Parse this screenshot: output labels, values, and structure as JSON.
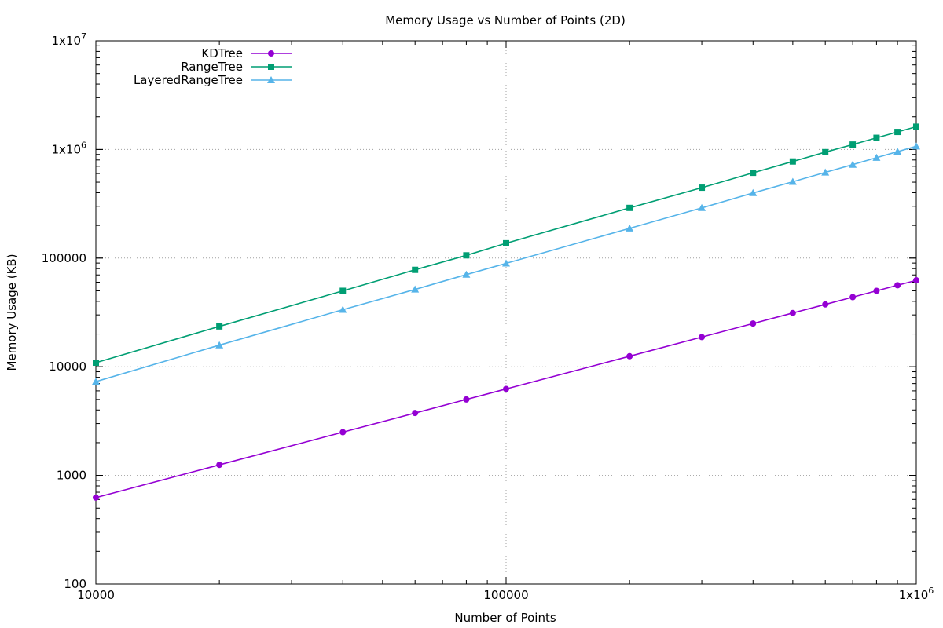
{
  "chart_data": {
    "type": "line",
    "title": "Memory Usage vs Number of Points (2D)",
    "xlabel": "Number of Points",
    "ylabel": "Memory Usage (KB)",
    "x_scale": "log",
    "y_scale": "log",
    "xlim": [
      10000,
      1000000
    ],
    "ylim": [
      100,
      10000000
    ],
    "grid": true,
    "legend_position": "top-left",
    "x_ticks": [
      {
        "value": 10000,
        "label": "10000"
      },
      {
        "value": 100000,
        "label": "100000"
      },
      {
        "value": 1000000,
        "label": "1x10",
        "exp": "6"
      }
    ],
    "y_ticks": [
      {
        "value": 100,
        "label": "100"
      },
      {
        "value": 1000,
        "label": "1000"
      },
      {
        "value": 10000,
        "label": "10000"
      },
      {
        "value": 100000,
        "label": "100000"
      },
      {
        "value": 1000000,
        "label": "1x10",
        "exp": "6"
      },
      {
        "value": 10000000,
        "label": "1x10",
        "exp": "7"
      }
    ],
    "x": [
      10000,
      20000,
      40000,
      60000,
      80000,
      100000,
      200000,
      300000,
      400000,
      500000,
      600000,
      700000,
      800000,
      900000,
      1000000
    ],
    "series": [
      {
        "name": "KDTree",
        "color": "#9400d3",
        "marker": "circle",
        "values": [
          625,
          1250,
          2500,
          3750,
          5000,
          6250,
          12500,
          18750,
          25000,
          31250,
          37500,
          43750,
          50000,
          56250,
          62500
        ]
      },
      {
        "name": "RangeTree",
        "color": "#009e73",
        "marker": "square",
        "values": [
          10900,
          23500,
          50000,
          78000,
          106000,
          137000,
          290000,
          445000,
          610000,
          775000,
          945000,
          1110000,
          1280000,
          1450000,
          1620000
        ]
      },
      {
        "name": "LayeredRangeTree",
        "color": "#56b4e9",
        "marker": "triangle",
        "values": [
          7300,
          15800,
          33500,
          51500,
          70500,
          89500,
          188000,
          290000,
          398000,
          505000,
          615000,
          725000,
          840000,
          955000,
          1070000
        ]
      }
    ]
  }
}
